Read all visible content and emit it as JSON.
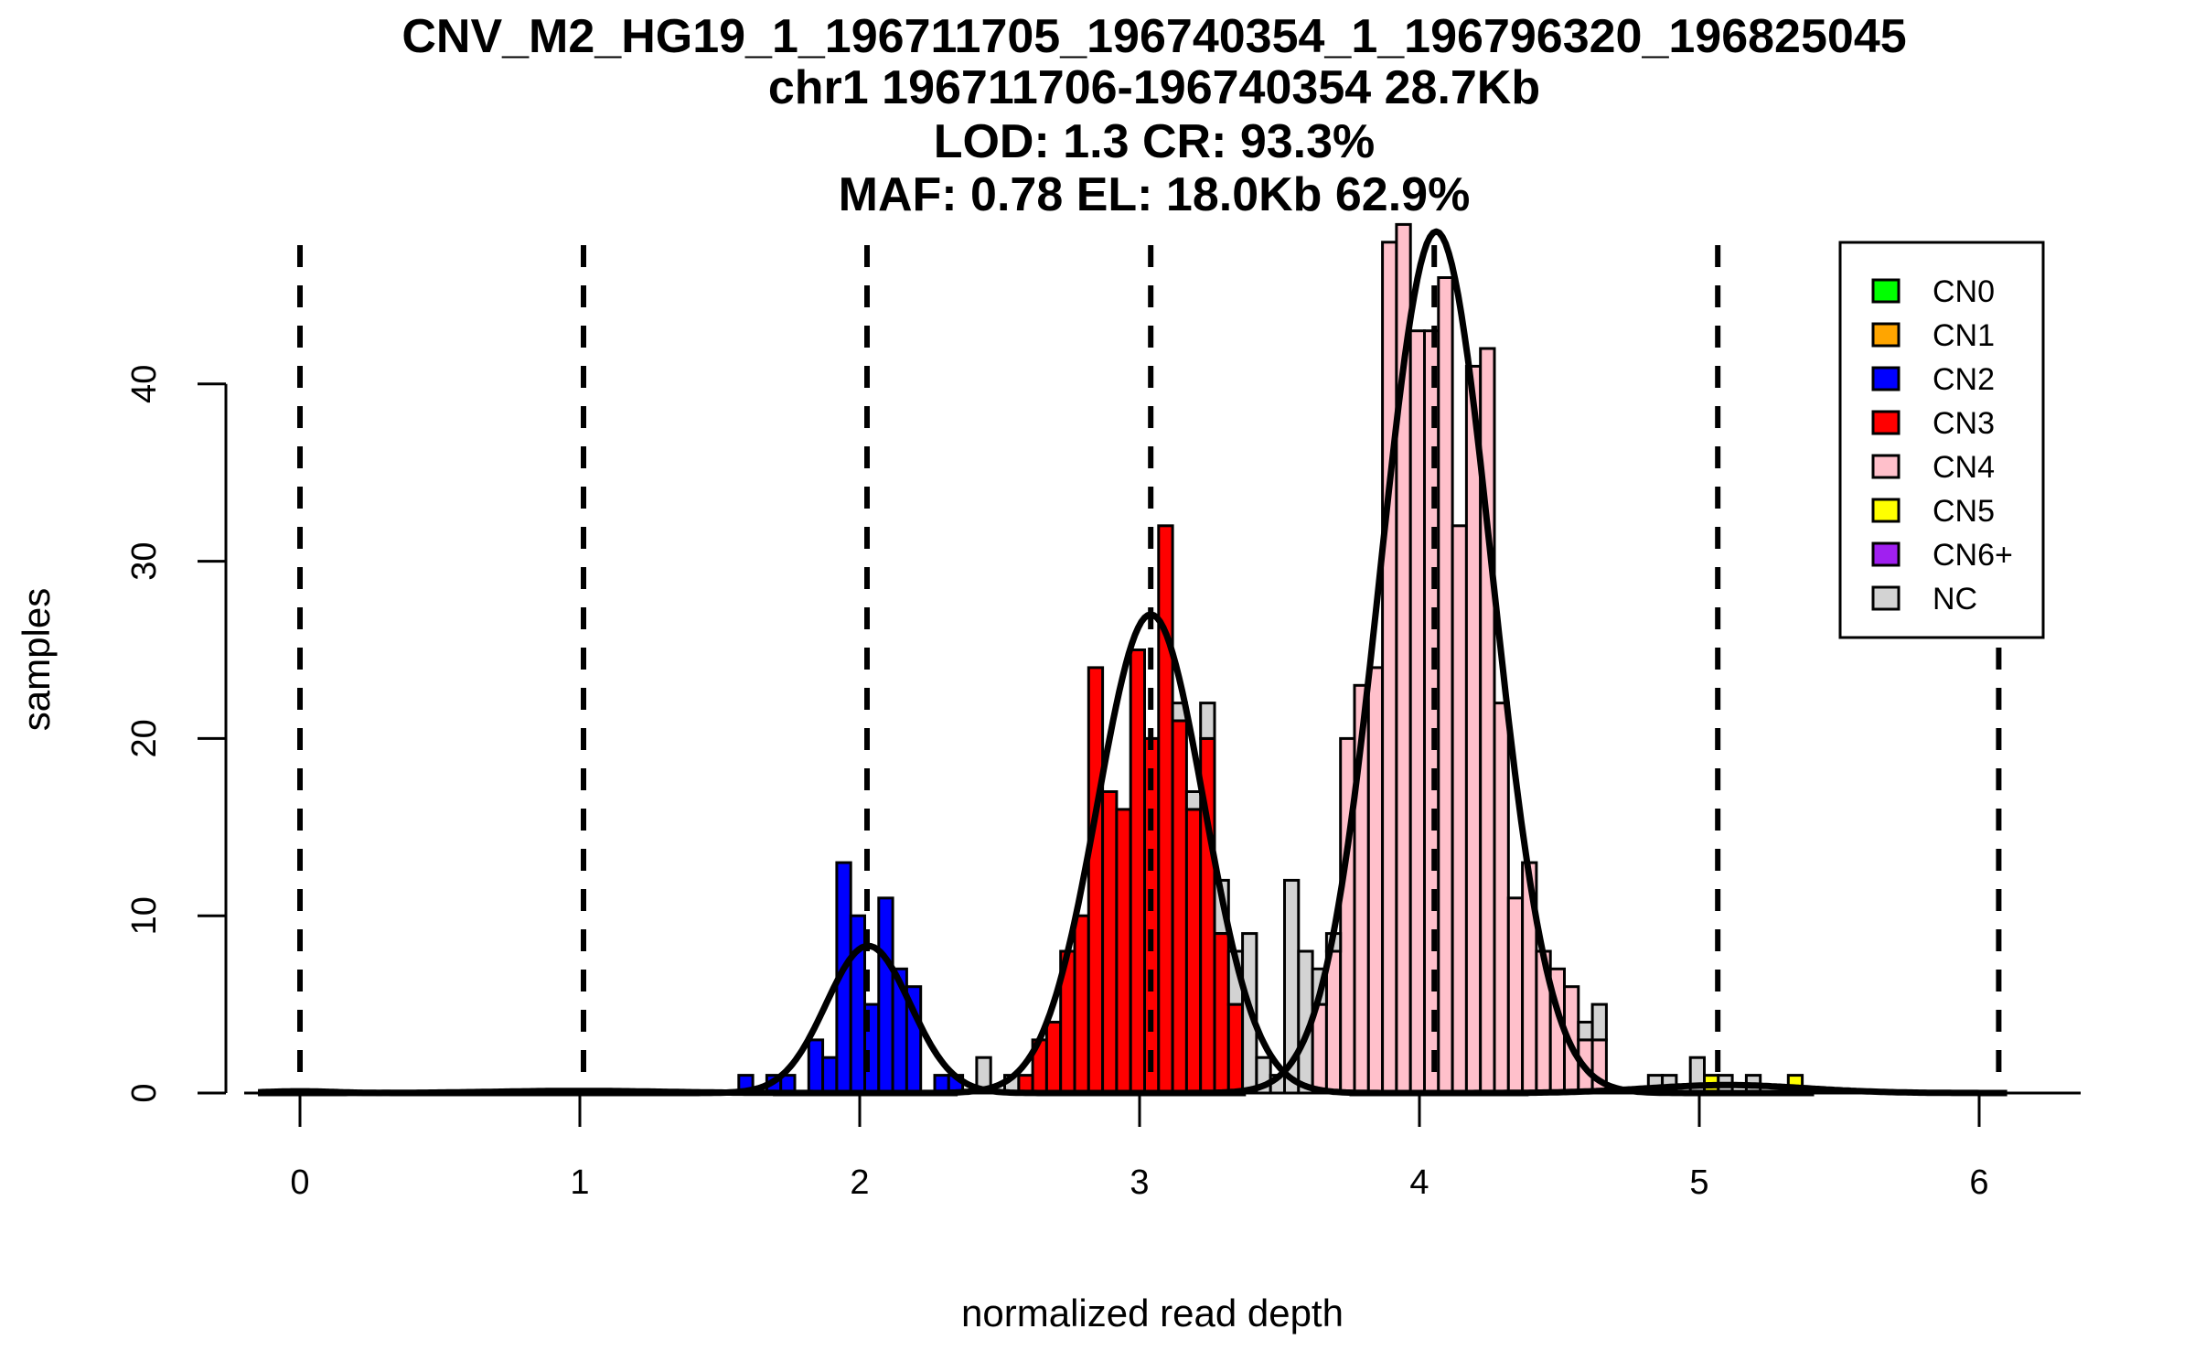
{
  "chart_data": {
    "type": "bar",
    "subtype": "stacked-histogram-with-gaussian-fits",
    "title_lines": [
      "CNV_M2_HG19_1_196711705_196740354_1_196796320_196825045",
      "chr1 196711706-196740354 28.7Kb",
      "LOD: 1.3 CR: 93.3%",
      "MAF: 0.78 EL: 18.0Kb 62.9%"
    ],
    "xlabel": "normalized read depth",
    "ylabel": "samples",
    "xlim": [
      -0.2,
      6.35
    ],
    "ylim": [
      0,
      48.5
    ],
    "x_ticks": [
      0,
      1,
      2,
      3,
      4,
      5,
      6
    ],
    "y_ticks": [
      0,
      10,
      20,
      30,
      40
    ],
    "grid": false,
    "bin_start": 1.568,
    "bin_width": 0.05,
    "legend": {
      "position": "top-right",
      "entries": [
        {
          "label": "CN0",
          "color": "#00FF00"
        },
        {
          "label": "CN1",
          "color": "#FFA500"
        },
        {
          "label": "CN2",
          "color": "#0000FF"
        },
        {
          "label": "CN3",
          "color": "#FF0000"
        },
        {
          "label": "CN4",
          "color": "#FFC0CB"
        },
        {
          "label": "CN5",
          "color": "#FFFF00"
        },
        {
          "label": "CN6+",
          "color": "#A020F0"
        },
        {
          "label": "NC",
          "color": "#D3D3D3"
        }
      ]
    },
    "series": [
      {
        "name": "CN2",
        "color": "#0000FF",
        "bins": [
          0,
          2,
          3,
          5,
          6,
          7,
          8,
          9,
          10,
          11,
          12,
          14,
          15
        ],
        "values": [
          1,
          1,
          1,
          3,
          2,
          13,
          10,
          5,
          11,
          7,
          6,
          1,
          1
        ]
      },
      {
        "name": "CN3",
        "color": "#FF0000",
        "bins": [
          20,
          21,
          22,
          23,
          24,
          25,
          26,
          27,
          28,
          29,
          30,
          31,
          32,
          33,
          34,
          35
        ],
        "values": [
          1,
          3,
          4,
          8,
          10,
          24,
          17,
          16,
          25,
          20,
          32,
          21,
          16,
          20,
          9,
          5
        ]
      },
      {
        "name": "CN4",
        "color": "#FFC0CB",
        "bins": [
          41,
          42,
          43,
          44,
          45,
          46,
          47,
          48,
          49,
          50,
          51,
          52,
          53,
          54,
          55,
          56,
          57,
          58,
          59,
          60,
          61
        ],
        "values": [
          5,
          8,
          20,
          23,
          24,
          48,
          49,
          43,
          43,
          46,
          32,
          41,
          42,
          22,
          11,
          13,
          8,
          7,
          6,
          3,
          3
        ]
      },
      {
        "name": "CN5",
        "color": "#FFFF00",
        "bins": [
          69,
          75
        ],
        "values": [
          1,
          1
        ]
      },
      {
        "name": "NC",
        "color": "#D3D3D3",
        "bins": [
          17,
          19,
          31,
          32,
          33,
          34,
          35,
          36,
          37,
          38,
          39,
          40,
          41,
          42,
          60,
          61,
          65,
          66,
          68,
          70,
          72
        ],
        "values": [
          2,
          1,
          1,
          1,
          2,
          3,
          3,
          9,
          2,
          1,
          12,
          8,
          2,
          1,
          1,
          2,
          1,
          1,
          2,
          1,
          1
        ]
      }
    ],
    "gaussian_fits": [
      {
        "name": "CN0",
        "mean": 0.0,
        "sd": 0.12,
        "peak": 0.1
      },
      {
        "name": "CN1",
        "mean": 1.0,
        "sd": 0.3,
        "peak": 0.12
      },
      {
        "name": "CN2",
        "mean": 2.03,
        "sd": 0.15,
        "peak": 8.3
      },
      {
        "name": "CN3",
        "mean": 3.04,
        "sd": 0.19,
        "peak": 27.0
      },
      {
        "name": "CN4",
        "mean": 4.06,
        "sd": 0.2,
        "peak": 48.6
      },
      {
        "name": "CN5",
        "mean": 5.1,
        "sd": 0.28,
        "peak": 0.45
      }
    ],
    "cn_boundaries": [
      0.0,
      1.013,
      2.026,
      3.04,
      4.053,
      5.066,
      6.07
    ]
  }
}
